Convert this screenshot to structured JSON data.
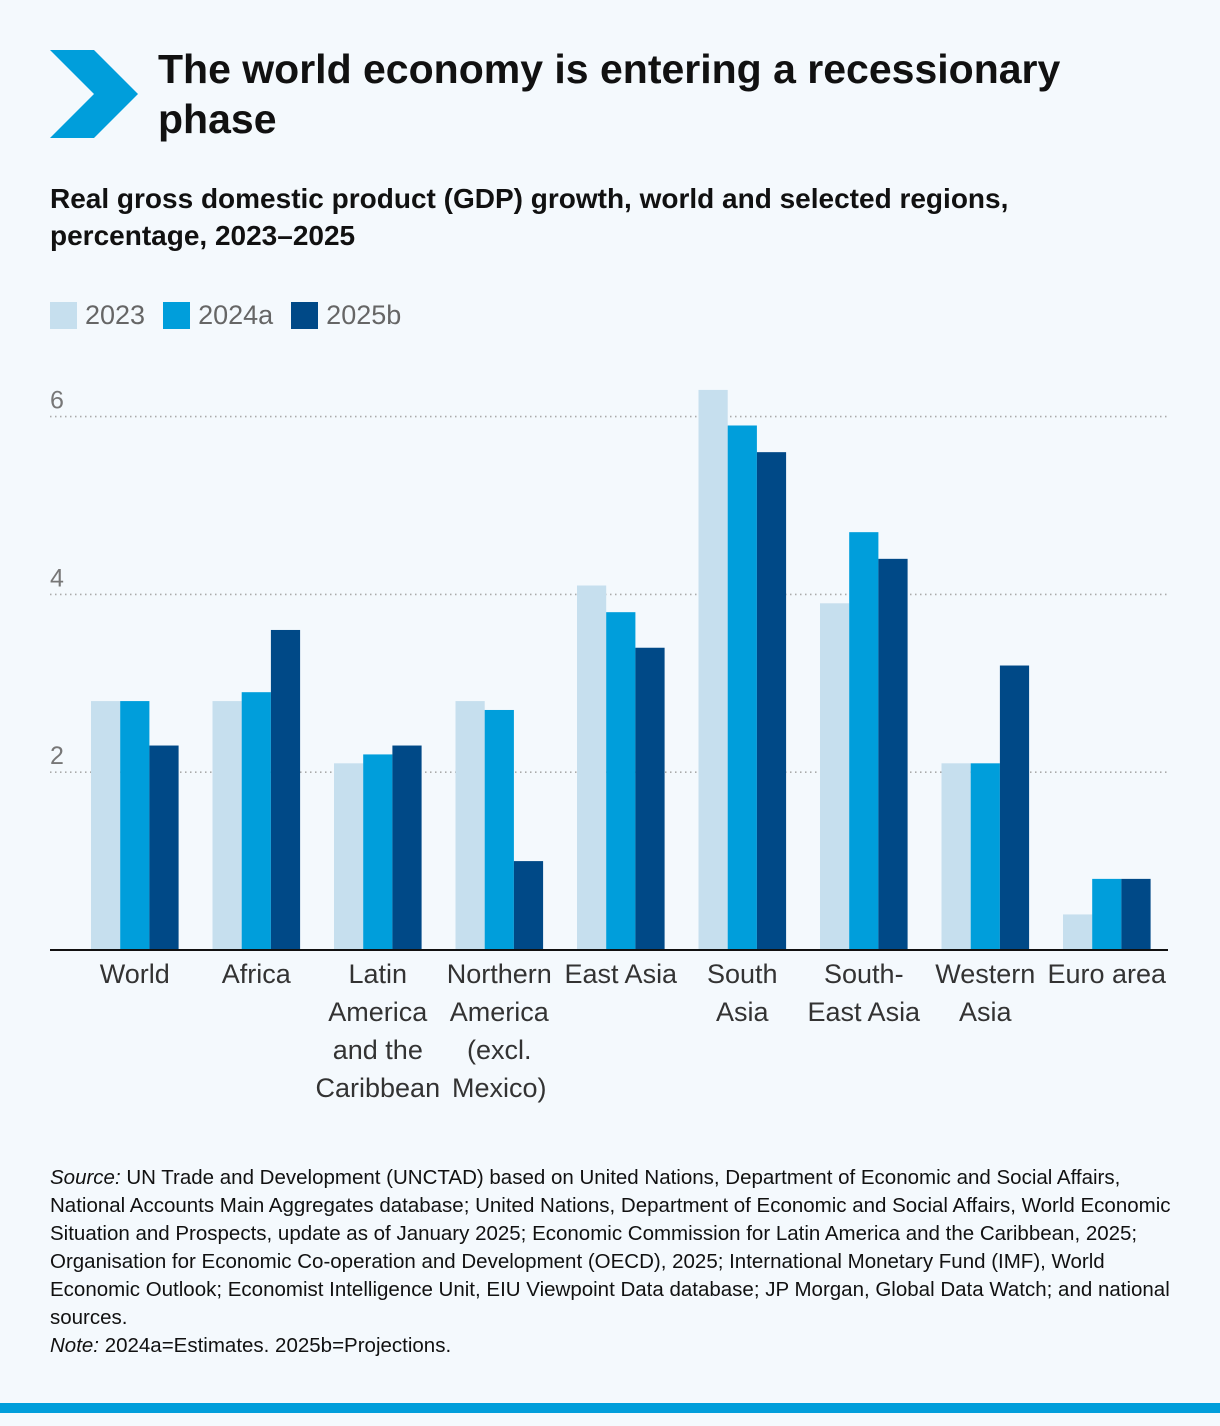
{
  "header": {
    "title": "The world economy is entering a recessionary phase",
    "subtitle": "Real gross domestic product (GDP) growth, world and selected regions, percentage, 2023–2025",
    "chevron_icon": "chevron-right-icon"
  },
  "colors": {
    "s2023": "#c6dfee",
    "s2024": "#009edb",
    "s2025": "#004987",
    "accent": "#009edb",
    "grid": "#aaaaaa",
    "background": "#f4f9fd"
  },
  "chart_data": {
    "type": "bar",
    "title": "Real gross domestic product (GDP) growth, world and selected regions, percentage, 2023–2025",
    "xlabel": "",
    "ylabel": "",
    "ylim": [
      0,
      6
    ],
    "yticks": [
      2,
      4,
      6
    ],
    "grid": true,
    "legend_position": "top-left",
    "categories": [
      [
        "World"
      ],
      [
        "Africa"
      ],
      [
        "Latin",
        "America",
        "and the",
        "Caribbean"
      ],
      [
        "Northern",
        "America",
        "(excl.",
        "Mexico)"
      ],
      [
        "East Asia"
      ],
      [
        "South",
        "Asia"
      ],
      [
        "South-",
        "East Asia"
      ],
      [
        "Western",
        "Asia"
      ],
      [
        "Euro area"
      ]
    ],
    "series": [
      {
        "name": "2023",
        "color": "#c6dfee",
        "values": [
          2.8,
          2.8,
          2.1,
          2.8,
          4.1,
          6.3,
          3.9,
          2.1,
          0.4
        ]
      },
      {
        "name": "2024a",
        "color": "#009edb",
        "values": [
          2.8,
          2.9,
          2.2,
          2.7,
          3.8,
          5.9,
          4.7,
          2.1,
          0.8
        ]
      },
      {
        "name": "2025b",
        "color": "#004987",
        "values": [
          2.3,
          3.6,
          2.3,
          1.0,
          3.4,
          5.6,
          4.4,
          3.2,
          0.8
        ]
      }
    ]
  },
  "footnote": {
    "source_label": "Source:",
    "source_text": " UN Trade and Development (UNCTAD) based on United Nations, Department of Economic and Social Affairs, National Accounts Main Aggregates database; United Nations, Department of Economic and Social Affairs, World Economic Situation and Prospects, update as of January 2025; Economic Commission for Latin America and the Caribbean, 2025; Organisation for Economic Co-operation and Development (OECD), 2025; International Monetary Fund (IMF), World Economic Outlook; Economist Intelligence Unit, EIU Viewpoint Data database; JP Morgan, Global Data Watch; and national sources.",
    "note_label": "Note:",
    "note_text": " 2024a=Estimates. 2025b=Projections."
  }
}
